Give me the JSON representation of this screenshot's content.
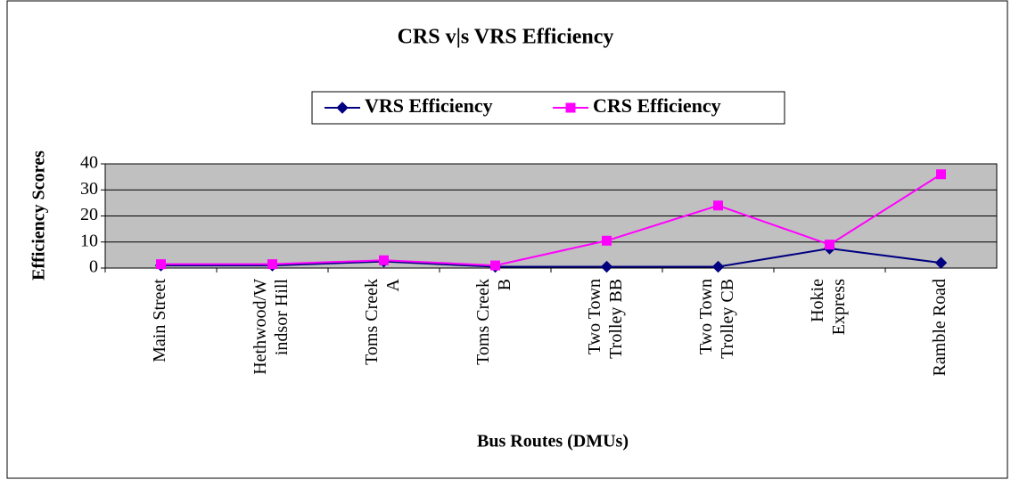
{
  "chart_data": {
    "type": "line",
    "title": "CRS v|s VRS Efficiency",
    "x_label": "Bus Routes (DMUs)",
    "y_label": "Efficiency Scores",
    "categories": [
      [
        "Main Street"
      ],
      [
        "Hethwood/W",
        "indsor Hill"
      ],
      [
        "Toms Creek",
        "A"
      ],
      [
        "Toms Creek",
        "B"
      ],
      [
        "Two Town",
        "Trolley BB"
      ],
      [
        "Two Town",
        "Trolley CB"
      ],
      [
        "Hokie",
        "Express"
      ],
      [
        "Ramble Road"
      ]
    ],
    "series": [
      {
        "name": "VRS Efficiency",
        "color": "#000080",
        "marker": "diamond",
        "values": [
          1,
          1,
          2.5,
          0.5,
          0.5,
          0.5,
          7.5,
          2
        ]
      },
      {
        "name": "CRS Efficiency",
        "color": "#ff00ff",
        "marker": "square",
        "values": [
          1.5,
          1.5,
          3,
          1,
          10.5,
          24,
          9,
          36
        ]
      }
    ],
    "ylim": [
      0,
      40
    ],
    "yticks": [
      0,
      10,
      20,
      30,
      40
    ],
    "grid": true,
    "plot_background": "#c0c0c0",
    "legend": "top"
  }
}
